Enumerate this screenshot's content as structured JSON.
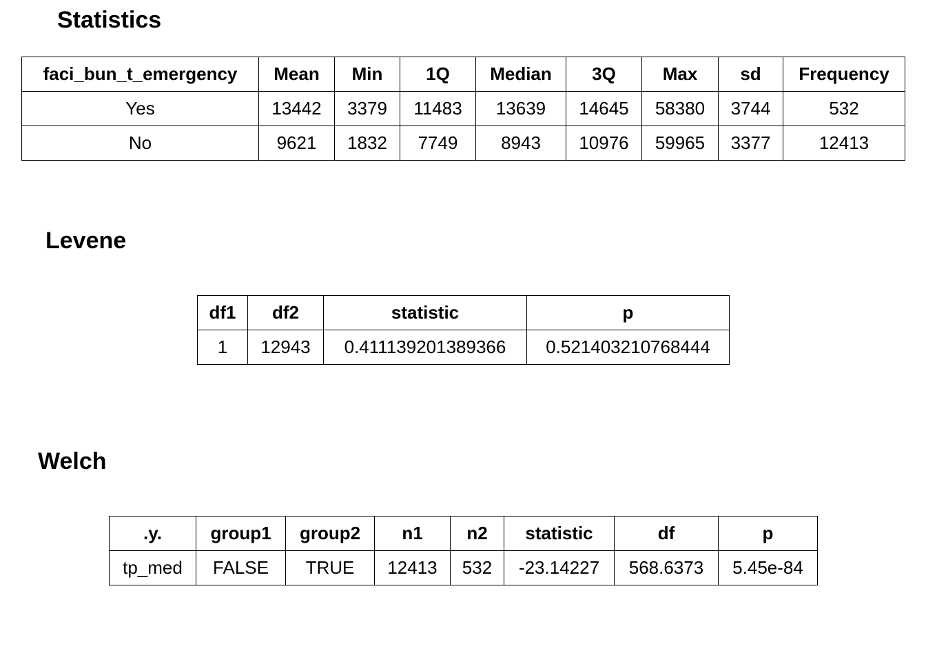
{
  "sections": [
    {
      "title": "Statistics",
      "table": {
        "header": [
          "faci_bun_t_emergency",
          "Mean",
          "Min",
          "1Q",
          "Median",
          "3Q",
          "Max",
          "sd",
          "Frequency"
        ],
        "rows": [
          [
            "Yes",
            "13442",
            "3379",
            "11483",
            "13639",
            "14645",
            "58380",
            "3744",
            "532"
          ],
          [
            "No",
            "9621",
            "1832",
            "7749",
            "8943",
            "10976",
            "59965",
            "3377",
            "12413"
          ]
        ]
      }
    },
    {
      "title": "Levene",
      "table": {
        "header": [
          "df1",
          "df2",
          "statistic",
          "p"
        ],
        "rows": [
          [
            "1",
            "12943",
            "0.411139201389366",
            "0.521403210768444"
          ]
        ]
      }
    },
    {
      "title": "Welch",
      "table": {
        "header": [
          ".y.",
          "group1",
          "group2",
          "n1",
          "n2",
          "statistic",
          "df",
          "p"
        ],
        "rows": [
          [
            "tp_med",
            "FALSE",
            "TRUE",
            "12413",
            "532",
            "-23.14227",
            "568.6373",
            "5.45e-84"
          ]
        ]
      }
    }
  ]
}
